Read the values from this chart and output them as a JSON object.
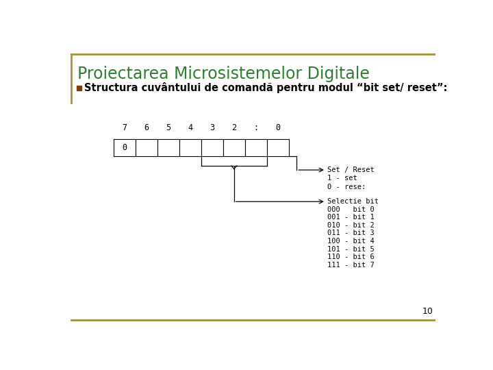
{
  "title": "Proiectarea Microsistemelor Digitale",
  "title_color": "#2E7D32",
  "bullet_text": "Structura cuvântului de comandă pentru modul “bit set/ reset”:",
  "bullet_color": "#000000",
  "border_color": "#A89040",
  "page_number": "10",
  "background_color": "#FFFFFF",
  "bit_labels": [
    "7",
    "6",
    "5",
    "4",
    "3",
    "2",
    ":",
    "0"
  ],
  "set_reset_label": "Set / Reset",
  "set_reset_sub": [
    "1 - set",
    "0 - rese:"
  ],
  "selectie_label": "Selectie bit",
  "selectie_sub": [
    "000   bit 0",
    "001 - bit 1",
    "010 - bit 2",
    "011 - bit 3",
    "100 - bit 4",
    "101 - bit 5",
    "110 - bit 6",
    "111 - bit 7"
  ]
}
